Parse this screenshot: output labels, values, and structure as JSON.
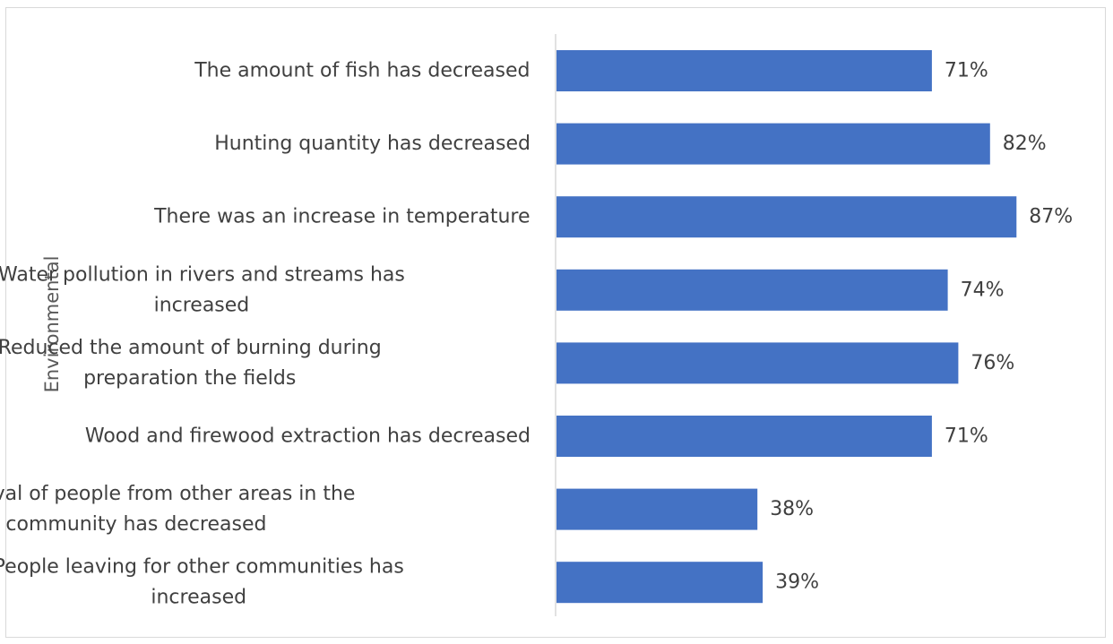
{
  "chart_data": {
    "type": "bar",
    "orientation": "horizontal",
    "ylabel": "Environmental",
    "xlabel": "",
    "title": "",
    "xlim": [
      0,
      100
    ],
    "value_suffix": "%",
    "bar_color": "#4472c4",
    "categories": [
      "The amount of fish has decreased",
      "Hunting quantity has decreased",
      "There was an increase in temperature",
      "Water pollution in rivers and streams has increased",
      "Reduced the amount of burning during preparation the fields",
      "Wood and firewood extraction has decreased",
      "The arrival of people from other areas in the community has decreased",
      "People leaving for other communities has increased"
    ],
    "category_lines": [
      [
        "The amount of fish has decreased"
      ],
      [
        "Hunting quantity has decreased"
      ],
      [
        "There was an increase in temperature"
      ],
      [
        "Water pollution in rivers and streams has",
        "increased"
      ],
      [
        "Reduced the amount of burning during",
        "preparation the fields"
      ],
      [
        "Wood and firewood extraction has decreased"
      ],
      [
        "The arrival of people from other areas in the",
        "community has decreased"
      ],
      [
        "People leaving for other communities has",
        "increased"
      ]
    ],
    "values": [
      71,
      82,
      87,
      74,
      76,
      71,
      38,
      39
    ],
    "data_labels": [
      "71%",
      "82%",
      "87%",
      "74%",
      "76%",
      "71%",
      "38%",
      "39%"
    ]
  }
}
